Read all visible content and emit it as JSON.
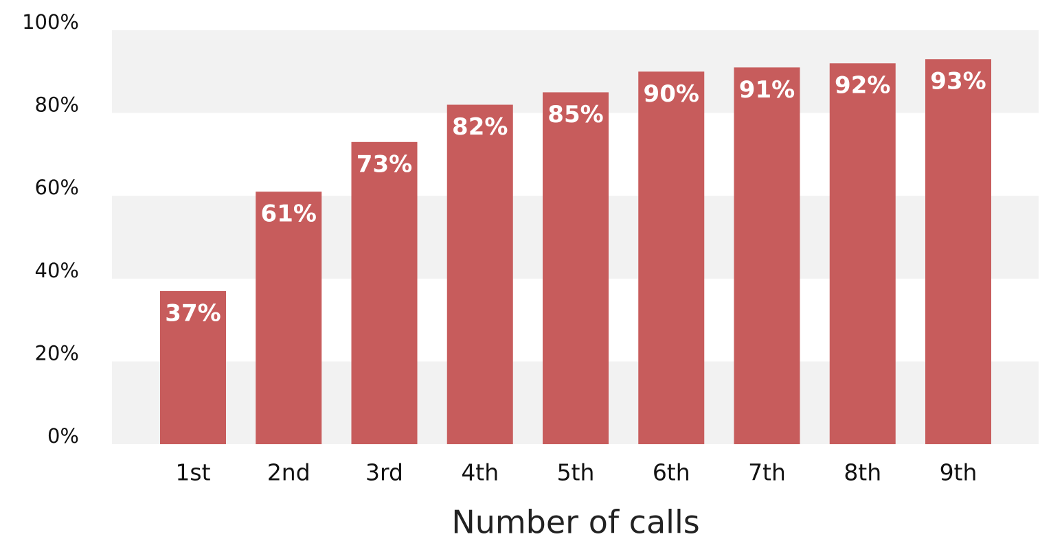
{
  "chart_data": {
    "type": "bar",
    "x_label": "Number of calls",
    "categories": [
      "1st",
      "2nd",
      "3rd",
      "4th",
      "5th",
      "6th",
      "7th",
      "8th",
      "9th"
    ],
    "values": [
      37,
      61,
      73,
      82,
      85,
      90,
      91,
      92,
      93
    ],
    "value_labels": [
      "37%",
      "61%",
      "73%",
      "82%",
      "85%",
      "90%",
      "91%",
      "92%",
      "93%"
    ],
    "color": "#c75c5c",
    "ylim": [
      0,
      100
    ],
    "yticks": [
      {
        "value": 0,
        "label": "0%"
      },
      {
        "value": 20,
        "label": "20%"
      },
      {
        "value": 40,
        "label": "40%"
      },
      {
        "value": 60,
        "label": "60%"
      },
      {
        "value": 80,
        "label": "80%"
      },
      {
        "value": 100,
        "label": "100%"
      }
    ],
    "grid": true
  }
}
